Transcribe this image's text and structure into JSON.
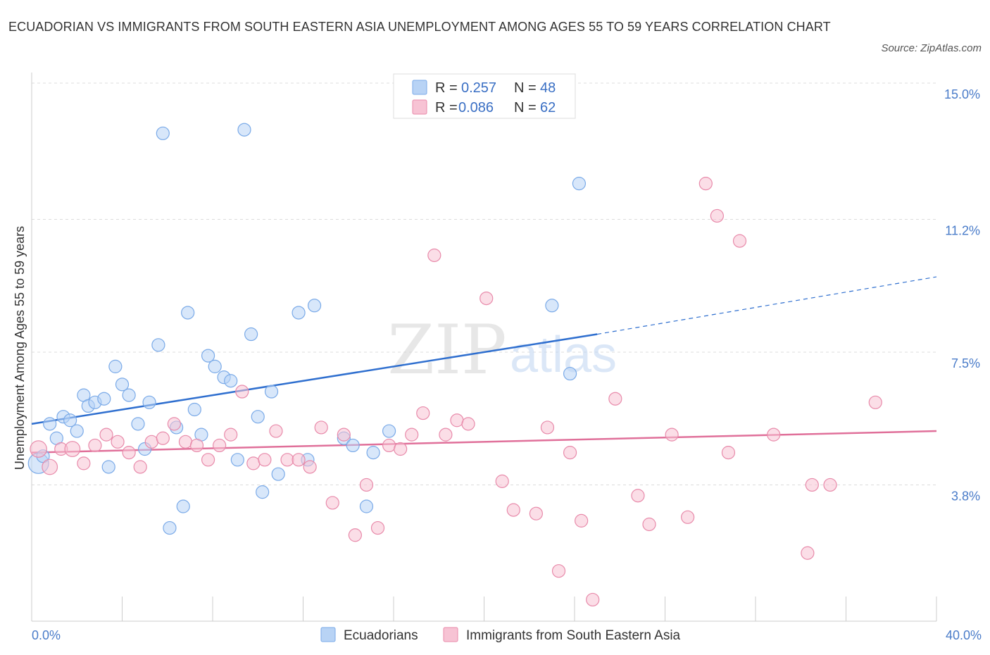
{
  "title": "ECUADORIAN VS IMMIGRANTS FROM SOUTH EASTERN ASIA UNEMPLOYMENT AMONG AGES 55 TO 59 YEARS CORRELATION CHART",
  "source": "Source: ZipAtlas.com",
  "watermark": {
    "zip": "ZIP",
    "atlas": "atlas"
  },
  "chart_data": {
    "type": "scatter",
    "title": "ECUADORIAN VS IMMIGRANTS FROM SOUTH EASTERN ASIA UNEMPLOYMENT AMONG AGES 55 TO 59 YEARS CORRELATION CHART",
    "xlabel": "",
    "ylabel": "Unemployment Among Ages 55 to 59 years",
    "xlim": [
      0,
      40
    ],
    "ylim": [
      0,
      15
    ],
    "x_tick_labels": {
      "min": "0.0%",
      "max": "40.0%"
    },
    "y_ticks": [
      {
        "value": 3.8,
        "label": "3.8%"
      },
      {
        "value": 7.5,
        "label": "7.5%"
      },
      {
        "value": 11.2,
        "label": "11.2%"
      },
      {
        "value": 15.0,
        "label": "15.0%"
      }
    ],
    "grid": true,
    "legend_position": "top-center",
    "series": [
      {
        "name": "Ecuadorians",
        "color": "#7aaae8",
        "fill": "#b8d3f5",
        "legend_r_label": "R =",
        "legend_r": "0.257",
        "legend_n_label": "N =",
        "legend_n": "48",
        "trend": {
          "x0": 0,
          "y0": 5.5,
          "x1": 25,
          "y1": 8.0,
          "x_dash_end": 40,
          "y_dash_end": 9.6
        },
        "points": [
          [
            0.3,
            4.4,
            1.6
          ],
          [
            0.5,
            4.6,
            1
          ],
          [
            0.8,
            5.5,
            1
          ],
          [
            1.1,
            5.1,
            1
          ],
          [
            1.4,
            5.7,
            1
          ],
          [
            1.7,
            5.6,
            1
          ],
          [
            2.0,
            5.3,
            1
          ],
          [
            2.3,
            6.3,
            1
          ],
          [
            2.5,
            6.0,
            1
          ],
          [
            2.8,
            6.1,
            1
          ],
          [
            3.2,
            6.2,
            1
          ],
          [
            3.4,
            4.3,
            1
          ],
          [
            3.7,
            7.1,
            1
          ],
          [
            4.0,
            6.6,
            1
          ],
          [
            4.3,
            6.3,
            1
          ],
          [
            4.7,
            5.5,
            1
          ],
          [
            5.0,
            4.8,
            1
          ],
          [
            5.2,
            6.1,
            1
          ],
          [
            5.6,
            7.7,
            1
          ],
          [
            5.8,
            13.6,
            1
          ],
          [
            6.1,
            2.6,
            1
          ],
          [
            6.4,
            5.4,
            1
          ],
          [
            6.7,
            3.2,
            1
          ],
          [
            6.9,
            8.6,
            1
          ],
          [
            7.2,
            5.9,
            1
          ],
          [
            7.5,
            5.2,
            1
          ],
          [
            7.8,
            7.4,
            1
          ],
          [
            8.1,
            7.1,
            1
          ],
          [
            8.5,
            6.8,
            1
          ],
          [
            8.8,
            6.7,
            1
          ],
          [
            9.1,
            4.5,
            1
          ],
          [
            9.4,
            13.7,
            1
          ],
          [
            9.7,
            8.0,
            1
          ],
          [
            10.0,
            5.7,
            1
          ],
          [
            10.2,
            3.6,
            1
          ],
          [
            10.6,
            6.4,
            1
          ],
          [
            10.9,
            4.1,
            1
          ],
          [
            11.8,
            8.6,
            1
          ],
          [
            12.2,
            4.5,
            1
          ],
          [
            12.5,
            8.8,
            1
          ],
          [
            13.8,
            5.1,
            1
          ],
          [
            14.2,
            4.9,
            1
          ],
          [
            14.8,
            3.2,
            1
          ],
          [
            15.1,
            4.7,
            1
          ],
          [
            15.8,
            5.3,
            1
          ],
          [
            23.0,
            8.8,
            1
          ],
          [
            23.8,
            6.9,
            1
          ],
          [
            24.2,
            12.2,
            1
          ]
        ]
      },
      {
        "name": "Immigrants from South Eastern Asia",
        "color": "#e88aaa",
        "fill": "#f7c3d4",
        "legend_r_label": "R =",
        "legend_r": "0.086",
        "legend_n_label": "N =",
        "legend_n": "62",
        "trend": {
          "x0": 0,
          "y0": 4.7,
          "x1": 40,
          "y1": 5.3
        },
        "points": [
          [
            0.3,
            4.8,
            1.3
          ],
          [
            0.8,
            4.3,
            1.2
          ],
          [
            1.3,
            4.8,
            1
          ],
          [
            1.8,
            4.8,
            1.2
          ],
          [
            2.3,
            4.4,
            1
          ],
          [
            2.8,
            4.9,
            1
          ],
          [
            3.3,
            5.2,
            1
          ],
          [
            3.8,
            5.0,
            1
          ],
          [
            4.3,
            4.7,
            1
          ],
          [
            4.8,
            4.3,
            1
          ],
          [
            5.3,
            5.0,
            1
          ],
          [
            5.8,
            5.1,
            1
          ],
          [
            6.3,
            5.5,
            1
          ],
          [
            6.8,
            5.0,
            1
          ],
          [
            7.3,
            4.9,
            1
          ],
          [
            7.8,
            4.5,
            1
          ],
          [
            8.3,
            4.9,
            1
          ],
          [
            8.8,
            5.2,
            1
          ],
          [
            9.3,
            6.4,
            1
          ],
          [
            9.8,
            4.4,
            1
          ],
          [
            10.3,
            4.5,
            1
          ],
          [
            10.8,
            5.3,
            1
          ],
          [
            11.3,
            4.5,
            1
          ],
          [
            11.8,
            4.5,
            1
          ],
          [
            12.3,
            4.3,
            1
          ],
          [
            12.8,
            5.4,
            1
          ],
          [
            13.3,
            3.3,
            1
          ],
          [
            13.8,
            5.2,
            1
          ],
          [
            14.3,
            2.4,
            1
          ],
          [
            14.8,
            3.8,
            1
          ],
          [
            15.3,
            2.6,
            1
          ],
          [
            15.8,
            4.9,
            1
          ],
          [
            16.3,
            4.8,
            1
          ],
          [
            16.8,
            5.2,
            1
          ],
          [
            17.3,
            5.8,
            1
          ],
          [
            17.8,
            10.2,
            1
          ],
          [
            18.3,
            5.2,
            1
          ],
          [
            18.8,
            5.6,
            1
          ],
          [
            19.3,
            5.5,
            1
          ],
          [
            20.1,
            9.0,
            1
          ],
          [
            20.8,
            3.9,
            1
          ],
          [
            21.3,
            3.1,
            1
          ],
          [
            22.3,
            3.0,
            1
          ],
          [
            22.8,
            5.4,
            1
          ],
          [
            23.3,
            1.4,
            1
          ],
          [
            23.8,
            4.7,
            1
          ],
          [
            24.3,
            2.8,
            1
          ],
          [
            24.8,
            0.6,
            1
          ],
          [
            25.8,
            6.2,
            1
          ],
          [
            26.8,
            3.5,
            1
          ],
          [
            27.3,
            2.7,
            1
          ],
          [
            28.3,
            5.2,
            1
          ],
          [
            29.0,
            2.9,
            1
          ],
          [
            29.8,
            12.2,
            1
          ],
          [
            30.3,
            11.3,
            1
          ],
          [
            30.8,
            4.7,
            1
          ],
          [
            31.3,
            10.6,
            1
          ],
          [
            32.8,
            5.2,
            1
          ],
          [
            34.3,
            1.9,
            1
          ],
          [
            34.5,
            3.8,
            1
          ],
          [
            35.3,
            3.8,
            1
          ],
          [
            37.3,
            6.1,
            1
          ]
        ]
      }
    ]
  },
  "bottom_legend": [
    "Ecuadorians",
    "Immigrants from South Eastern Asia"
  ]
}
